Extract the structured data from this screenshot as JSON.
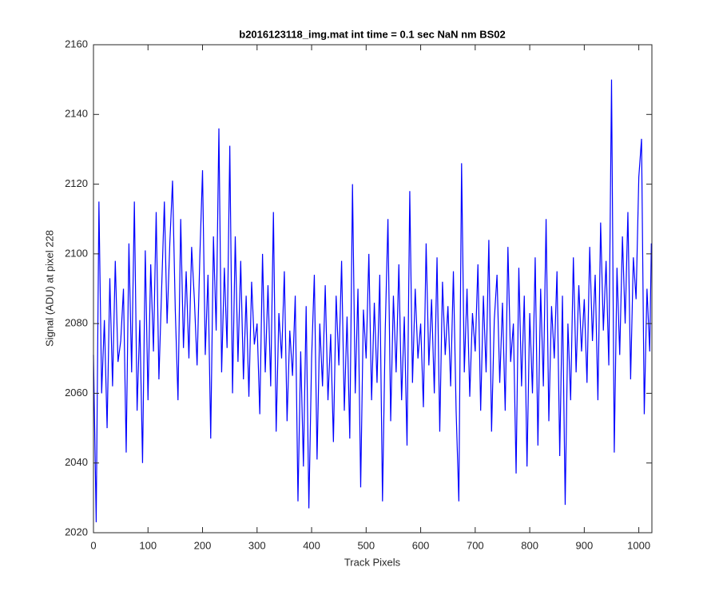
{
  "chart_data": {
    "type": "line",
    "title": "b2016123118_img.mat int time = 0.1 sec  NaN nm BS02",
    "x_label": "Track Pixels",
    "y_label": "Signal (ADU) at pixel 228",
    "xlim": [
      0,
      1024
    ],
    "ylim": [
      2020,
      2160
    ],
    "xticks": [
      0,
      100,
      200,
      300,
      400,
      500,
      600,
      700,
      800,
      900,
      1000
    ],
    "yticks": [
      2020,
      2040,
      2060,
      2080,
      2100,
      2120,
      2140,
      2160
    ],
    "grid": false,
    "x": [
      0,
      5,
      10,
      15,
      20,
      25,
      30,
      35,
      40,
      45,
      50,
      55,
      60,
      65,
      70,
      75,
      80,
      85,
      90,
      95,
      100,
      105,
      110,
      115,
      120,
      125,
      130,
      135,
      140,
      145,
      150,
      155,
      160,
      165,
      170,
      175,
      180,
      185,
      190,
      195,
      200,
      205,
      210,
      215,
      220,
      225,
      230,
      235,
      240,
      245,
      250,
      255,
      260,
      265,
      270,
      275,
      280,
      285,
      290,
      295,
      300,
      305,
      310,
      315,
      320,
      325,
      330,
      335,
      340,
      345,
      350,
      355,
      360,
      365,
      370,
      375,
      380,
      385,
      390,
      395,
      400,
      405,
      410,
      415,
      420,
      425,
      430,
      435,
      440,
      445,
      450,
      455,
      460,
      465,
      470,
      475,
      480,
      485,
      490,
      495,
      500,
      505,
      510,
      515,
      520,
      525,
      530,
      535,
      540,
      545,
      550,
      555,
      560,
      565,
      570,
      575,
      580,
      585,
      590,
      595,
      600,
      605,
      610,
      615,
      620,
      625,
      630,
      635,
      640,
      645,
      650,
      655,
      660,
      665,
      670,
      675,
      680,
      685,
      690,
      695,
      700,
      705,
      710,
      715,
      720,
      725,
      730,
      735,
      740,
      745,
      750,
      755,
      760,
      765,
      770,
      775,
      780,
      785,
      790,
      795,
      800,
      805,
      810,
      815,
      820,
      825,
      830,
      835,
      840,
      845,
      850,
      855,
      860,
      865,
      870,
      875,
      880,
      885,
      890,
      895,
      900,
      905,
      910,
      915,
      920,
      925,
      930,
      935,
      940,
      945,
      950,
      955,
      960,
      965,
      970,
      975,
      980,
      985,
      990,
      995,
      1000,
      1005,
      1010,
      1015,
      1020,
      1023
    ],
    "series": [
      {
        "color": "#0000ff",
        "values": [
          2071,
          2023,
          2115,
          2060,
          2081,
          2050,
          2093,
          2062,
          2098,
          2069,
          2075,
          2090,
          2043,
          2103,
          2066,
          2115,
          2055,
          2081,
          2040,
          2101,
          2058,
          2097,
          2072,
          2112,
          2064,
          2090,
          2115,
          2080,
          2103,
          2121,
          2084,
          2058,
          2110,
          2073,
          2095,
          2070,
          2102,
          2087,
          2068,
          2099,
          2124,
          2071,
          2094,
          2047,
          2105,
          2078,
          2136,
          2066,
          2096,
          2073,
          2131,
          2060,
          2105,
          2069,
          2098,
          2064,
          2088,
          2059,
          2092,
          2074,
          2080,
          2054,
          2100,
          2066,
          2091,
          2062,
          2112,
          2049,
          2083,
          2070,
          2095,
          2052,
          2078,
          2065,
          2088,
          2029,
          2072,
          2039,
          2085,
          2027,
          2070,
          2094,
          2041,
          2080,
          2062,
          2091,
          2058,
          2077,
          2046,
          2088,
          2068,
          2098,
          2055,
          2082,
          2047,
          2120,
          2060,
          2090,
          2033,
          2084,
          2070,
          2100,
          2058,
          2086,
          2063,
          2094,
          2029,
          2078,
          2110,
          2052,
          2088,
          2066,
          2097,
          2058,
          2082,
          2045,
          2118,
          2063,
          2090,
          2070,
          2080,
          2056,
          2103,
          2068,
          2087,
          2060,
          2099,
          2049,
          2092,
          2071,
          2085,
          2062,
          2095,
          2055,
          2029,
          2126,
          2066,
          2090,
          2059,
          2083,
          2072,
          2097,
          2055,
          2088,
          2066,
          2104,
          2049,
          2081,
          2094,
          2063,
          2086,
          2055,
          2102,
          2069,
          2080,
          2037,
          2096,
          2062,
          2088,
          2039,
          2083,
          2060,
          2099,
          2045,
          2090,
          2062,
          2110,
          2052,
          2085,
          2070,
          2095,
          2042,
          2088,
          2028,
          2080,
          2058,
          2099,
          2066,
          2091,
          2072,
          2087,
          2063,
          2102,
          2075,
          2094,
          2058,
          2109,
          2078,
          2098,
          2068,
          2150,
          2043,
          2096,
          2071,
          2105,
          2080,
          2112,
          2064,
          2099,
          2087,
          2122,
          2133,
          2054,
          2090,
          2072,
          2103
        ]
      }
    ]
  }
}
